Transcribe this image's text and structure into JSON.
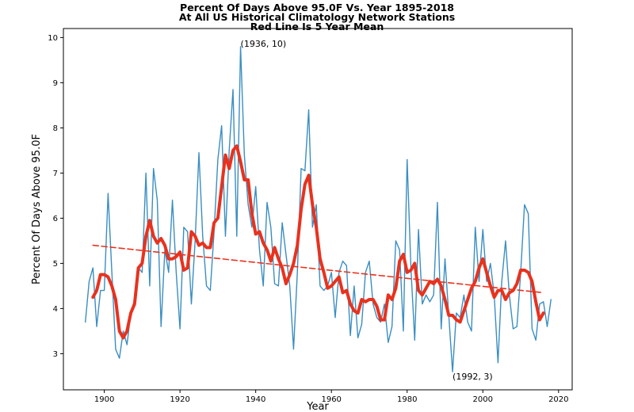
{
  "chart_data": {
    "type": "line",
    "title": [
      "Percent Of Days Above 95.0F Vs. Year 1895-2018",
      "At All US Historical Climatology Network Stations",
      "Red Line Is 5 Year Mean"
    ],
    "xlabel": "Year",
    "ylabel": "Percent Of Days Above 95.0F",
    "xlim": [
      1889.2,
      2023.6
    ],
    "ylim": [
      2.2,
      10.2
    ],
    "xticks": [
      1900,
      1920,
      1940,
      1960,
      1980,
      2000,
      2020
    ],
    "yticks": [
      3,
      4,
      5,
      6,
      7,
      8,
      9,
      10
    ],
    "grid": false,
    "series": [
      {
        "color": "#3a8ec2",
        "style": "solid",
        "width": 1.4,
        "x": [
          1895,
          1896,
          1897,
          1898,
          1899,
          1900,
          1901,
          1902,
          1903,
          1904,
          1905,
          1906,
          1907,
          1908,
          1909,
          1910,
          1911,
          1912,
          1913,
          1914,
          1915,
          1916,
          1917,
          1918,
          1919,
          1920,
          1921,
          1922,
          1923,
          1924,
          1925,
          1926,
          1927,
          1928,
          1929,
          1930,
          1931,
          1932,
          1933,
          1934,
          1935,
          1936,
          1937,
          1938,
          1939,
          1940,
          1941,
          1942,
          1943,
          1944,
          1945,
          1946,
          1947,
          1948,
          1949,
          1950,
          1951,
          1952,
          1953,
          1954,
          1955,
          1956,
          1957,
          1958,
          1959,
          1960,
          1961,
          1962,
          1963,
          1964,
          1965,
          1966,
          1967,
          1968,
          1969,
          1970,
          1971,
          1972,
          1973,
          1974,
          1975,
          1976,
          1977,
          1978,
          1979,
          1980,
          1981,
          1982,
          1983,
          1984,
          1985,
          1986,
          1987,
          1988,
          1989,
          1990,
          1991,
          1992,
          1993,
          1994,
          1995,
          1996,
          1997,
          1998,
          1999,
          2000,
          2001,
          2002,
          2003,
          2004,
          2005,
          2006,
          2007,
          2008,
          2009,
          2010,
          2011,
          2012,
          2013,
          2014,
          2015,
          2016,
          2017,
          2018
        ],
        "values": [
          3.7,
          4.6,
          4.9,
          3.6,
          4.4,
          4.4,
          6.55,
          4.8,
          3.1,
          2.9,
          3.5,
          3.2,
          3.9,
          4.2,
          4.9,
          4.8,
          7.0,
          4.5,
          7.1,
          6.4,
          3.6,
          5.3,
          4.8,
          6.4,
          4.8,
          3.55,
          5.8,
          5.7,
          4.1,
          5.5,
          7.45,
          5.6,
          4.5,
          4.4,
          5.7,
          7.3,
          8.05,
          5.6,
          7.5,
          8.85,
          5.6,
          9.8,
          7.4,
          6.3,
          5.8,
          6.7,
          5.3,
          4.5,
          6.35,
          5.8,
          4.55,
          4.5,
          5.9,
          5.2,
          4.5,
          3.1,
          4.8,
          7.1,
          7.05,
          8.4,
          5.8,
          6.3,
          4.5,
          4.4,
          4.5,
          4.8,
          3.8,
          4.8,
          5.05,
          4.95,
          3.4,
          4.5,
          3.35,
          3.65,
          4.8,
          5.05,
          4.1,
          3.8,
          3.7,
          4.1,
          3.25,
          3.6,
          5.5,
          5.3,
          3.5,
          7.3,
          4.9,
          3.3,
          5.75,
          4.1,
          4.3,
          4.15,
          4.3,
          6.35,
          3.55,
          5.1,
          3.85,
          2.6,
          3.9,
          3.8,
          4.3,
          3.7,
          3.5,
          5.8,
          4.6,
          5.75,
          4.6,
          5.0,
          4.3,
          2.8,
          4.6,
          5.5,
          4.3,
          3.55,
          3.6,
          4.8,
          6.3,
          6.1,
          3.55,
          3.3,
          4.1,
          4.15,
          3.6,
          4.2
        ]
      },
      {
        "color": "#e8321e",
        "style": "solid",
        "width": 4,
        "x": [
          1897,
          1898,
          1899,
          1900,
          1901,
          1902,
          1903,
          1904,
          1905,
          1906,
          1907,
          1908,
          1909,
          1910,
          1911,
          1912,
          1913,
          1914,
          1915,
          1916,
          1917,
          1918,
          1919,
          1920,
          1921,
          1922,
          1923,
          1924,
          1925,
          1926,
          1927,
          1928,
          1929,
          1930,
          1931,
          1932,
          1933,
          1934,
          1935,
          1936,
          1937,
          1938,
          1939,
          1940,
          1941,
          1942,
          1943,
          1944,
          1945,
          1946,
          1947,
          1948,
          1949,
          1950,
          1951,
          1952,
          1953,
          1954,
          1955,
          1956,
          1957,
          1958,
          1959,
          1960,
          1961,
          1962,
          1963,
          1964,
          1965,
          1966,
          1967,
          1968,
          1969,
          1970,
          1971,
          1972,
          1973,
          1974,
          1975,
          1976,
          1977,
          1978,
          1979,
          1980,
          1981,
          1982,
          1983,
          1984,
          1985,
          1986,
          1987,
          1988,
          1989,
          1990,
          1991,
          1992,
          1993,
          1994,
          1995,
          1996,
          1997,
          1998,
          1999,
          2000,
          2001,
          2002,
          2003,
          2004,
          2005,
          2006,
          2007,
          2008,
          2009,
          2010,
          2011,
          2012,
          2013,
          2014,
          2015,
          2016
        ],
        "values": [
          4.25,
          4.4,
          4.75,
          4.75,
          4.7,
          4.5,
          4.2,
          3.5,
          3.35,
          3.5,
          3.9,
          4.1,
          4.9,
          5.0,
          5.6,
          5.95,
          5.6,
          5.45,
          5.55,
          5.4,
          5.1,
          5.1,
          5.15,
          5.25,
          4.85,
          4.9,
          5.7,
          5.6,
          5.4,
          5.45,
          5.35,
          5.35,
          5.9,
          6.0,
          6.7,
          7.4,
          7.1,
          7.5,
          7.6,
          7.25,
          6.85,
          6.85,
          6.1,
          5.65,
          5.7,
          5.45,
          5.3,
          5.05,
          5.35,
          5.1,
          4.9,
          4.55,
          4.75,
          5.0,
          5.4,
          6.2,
          6.75,
          6.95,
          6.3,
          5.8,
          5.1,
          4.8,
          4.45,
          4.5,
          4.6,
          4.7,
          4.35,
          4.4,
          4.1,
          3.95,
          3.9,
          4.2,
          4.15,
          4.2,
          4.2,
          4.05,
          3.75,
          3.75,
          4.3,
          4.2,
          4.45,
          5.05,
          5.2,
          4.8,
          4.85,
          5.0,
          4.4,
          4.3,
          4.45,
          4.6,
          4.55,
          4.65,
          4.5,
          4.2,
          3.85,
          3.85,
          3.75,
          3.7,
          3.95,
          4.2,
          4.45,
          4.6,
          4.9,
          5.1,
          4.8,
          4.5,
          4.25,
          4.4,
          4.4,
          4.2,
          4.35,
          4.4,
          4.55,
          4.85,
          4.85,
          4.8,
          4.6,
          4.15,
          3.75,
          3.9
        ]
      },
      {
        "color": "#e8321e",
        "style": "dashed",
        "width": 1.6,
        "x": [
          1897,
          2016
        ],
        "values": [
          5.4,
          4.35
        ]
      }
    ],
    "annotations": [
      {
        "text": "(1936, 10)",
        "x": 1936,
        "y": 9.8
      },
      {
        "text": "(1992, 3)",
        "x": 1992,
        "y": 2.6
      }
    ]
  }
}
